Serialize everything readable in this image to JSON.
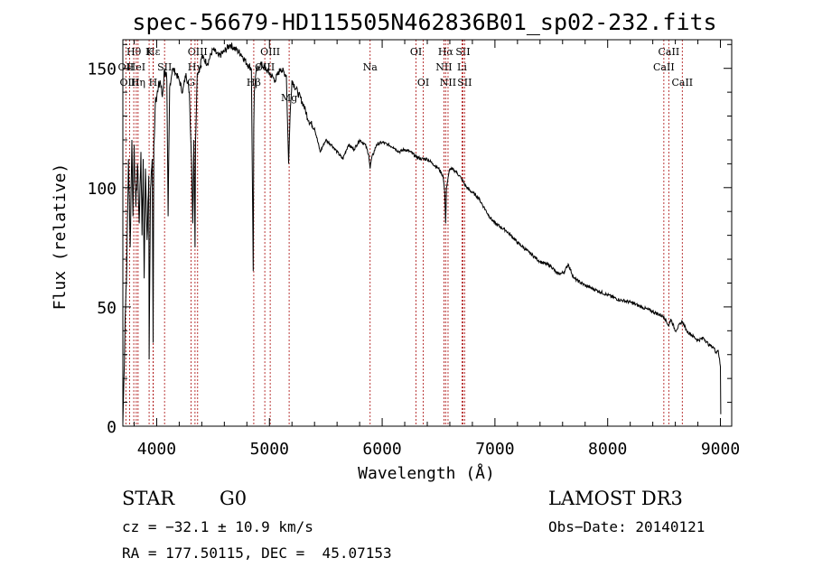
{
  "chart_data": {
    "type": "line",
    "title": "spec-56679-HD115505N462836B01_sp02-232.fits",
    "xlabel": "Wavelength (Å)",
    "ylabel": "Flux (relative)",
    "xlim": [
      3700,
      9100
    ],
    "ylim": [
      0,
      162
    ],
    "x_ticks": [
      4000,
      5000,
      6000,
      7000,
      8000,
      9000
    ],
    "y_ticks": [
      0,
      50,
      100,
      150
    ],
    "series": [
      {
        "name": "flux",
        "x": [
          3700,
          3710,
          3720,
          3735,
          3750,
          3765,
          3780,
          3790,
          3800,
          3815,
          3830,
          3845,
          3860,
          3870,
          3880,
          3889,
          3900,
          3915,
          3930,
          3933,
          3945,
          3960,
          3968,
          3975,
          3990,
          4010,
          4030,
          4050,
          4070,
          4090,
          4101,
          4115,
          4140,
          4170,
          4200,
          4230,
          4260,
          4290,
          4310,
          4320,
          4330,
          4340,
          4345,
          4360,
          4380,
          4400,
          4450,
          4500,
          4550,
          4600,
          4650,
          4700,
          4750,
          4800,
          4840,
          4856,
          4861,
          4866,
          4880,
          4920,
          4960,
          5000,
          5050,
          5100,
          5150,
          5170,
          5183,
          5200,
          5250,
          5300,
          5350,
          5400,
          5450,
          5500,
          5550,
          5600,
          5650,
          5700,
          5750,
          5800,
          5850,
          5880,
          5893,
          5905,
          5950,
          6000,
          6050,
          6100,
          6150,
          6200,
          6250,
          6300,
          6350,
          6400,
          6450,
          6500,
          6540,
          6555,
          6563,
          6570,
          6600,
          6650,
          6700,
          6750,
          6800,
          6850,
          6900,
          6950,
          7000,
          7100,
          7200,
          7300,
          7400,
          7500,
          7550,
          7590,
          7620,
          7650,
          7700,
          7800,
          7900,
          8000,
          8100,
          8200,
          8300,
          8400,
          8498,
          8542,
          8560,
          8600,
          8662,
          8700,
          8800,
          8850,
          8900,
          8940,
          8960,
          8980,
          9000,
          9003
        ],
        "values": [
          1,
          20,
          45,
          68,
          112,
          75,
          120,
          88,
          118,
          92,
          110,
          85,
          115,
          80,
          112,
          62,
          108,
          78,
          105,
          28,
          100,
          112,
          35,
          118,
          138,
          140,
          145,
          138,
          150,
          145,
          88,
          142,
          150,
          148,
          145,
          140,
          148,
          140,
          110,
          85,
          120,
          75,
          120,
          148,
          150,
          155,
          152,
          158,
          155,
          157,
          160,
          158,
          156,
          152,
          150,
          65,
          125,
          140,
          148,
          152,
          150,
          148,
          145,
          150,
          147,
          110,
          130,
          145,
          140,
          135,
          128,
          125,
          115,
          120,
          118,
          115,
          112,
          118,
          116,
          120,
          118,
          114,
          108,
          112,
          118,
          119,
          118,
          117,
          115,
          116,
          115,
          113,
          112,
          112,
          110,
          108,
          105,
          98,
          85,
          100,
          108,
          107,
          104,
          100,
          98,
          96,
          92,
          88,
          85,
          82,
          77,
          73,
          69,
          67,
          64,
          64,
          65,
          68,
          62,
          59,
          57,
          55,
          53,
          52,
          50,
          48,
          46,
          42,
          45,
          40,
          44,
          40,
          36,
          37,
          34,
          33,
          31,
          32,
          25,
          5
        ]
      }
    ],
    "line_markers": [
      {
        "label": "Hθ",
        "x": 3797,
        "row": 0
      },
      {
        "label": "K",
        "x": 3933,
        "row": 0
      },
      {
        "label": "Hε",
        "x": 3970,
        "row": 0
      },
      {
        "label": "OII",
        "x": 3727,
        "row": 1
      },
      {
        "label": "HeI",
        "x": 3819,
        "row": 1
      },
      {
        "label": "SII",
        "x": 4070,
        "row": 1
      },
      {
        "label": "OIII",
        "x": 3760,
        "row": 2
      },
      {
        "label": "Hη",
        "x": 3835,
        "row": 2
      },
      {
        "label": "H",
        "x": 3968,
        "row": 2
      },
      {
        "label": "OIII",
        "x": 4363,
        "row": 0
      },
      {
        "label": "Hγ",
        "x": 4340,
        "row": 1
      },
      {
        "label": "G",
        "x": 4305,
        "row": 2
      },
      {
        "label": "OIII",
        "x": 5007,
        "row": 0
      },
      {
        "label": "OIII",
        "x": 4959,
        "row": 1
      },
      {
        "label": "Hβ",
        "x": 4861,
        "row": 2
      },
      {
        "label": "Mg",
        "x": 5175,
        "row": 3
      },
      {
        "label": "Na",
        "x": 5893,
        "row": 1
      },
      {
        "label": "OI",
        "x": 6300,
        "row": 0
      },
      {
        "label": "OI",
        "x": 6364,
        "row": 2
      },
      {
        "label": "Hα",
        "x": 6563,
        "row": 0
      },
      {
        "label": "SII",
        "x": 6716,
        "row": 0
      },
      {
        "label": "NII",
        "x": 6548,
        "row": 1
      },
      {
        "label": "Li",
        "x": 6708,
        "row": 1
      },
      {
        "label": "NII",
        "x": 6584,
        "row": 2
      },
      {
        "label": "SII",
        "x": 6731,
        "row": 2
      },
      {
        "label": "CaII",
        "x": 8542,
        "row": 0
      },
      {
        "label": "CaII",
        "x": 8498,
        "row": 1
      },
      {
        "label": "CaII",
        "x": 8662,
        "row": 2
      }
    ]
  },
  "info": {
    "class_label": "STAR",
    "subclass": "G0",
    "survey": "LAMOST DR3",
    "cz": "cz = −32.1 ± 10.9 km/s",
    "obs_date": "Obs−Date: 20140121",
    "coords": "RA = 177.50115, DEC =  45.07153"
  },
  "colors": {
    "line": "#000000",
    "marker": "#b22222",
    "text": "#000000"
  }
}
